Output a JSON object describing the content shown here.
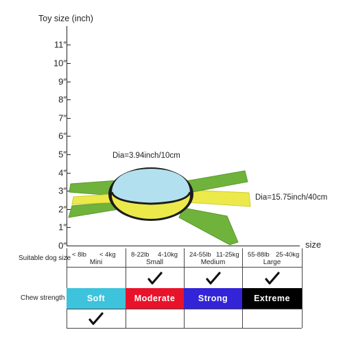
{
  "axis": {
    "y_title": "Toy size (inch)",
    "x_title": "size",
    "ticks": [
      "0″",
      "1″",
      "2″",
      "3″",
      "4″",
      "5″",
      "6″",
      "7″",
      "8″",
      "9″",
      "10″",
      "11″"
    ]
  },
  "annotations": {
    "dia_small": "Dia=3.94inch/10cm",
    "dia_large": "Dia=15.75inch/40cm"
  },
  "table": {
    "row1_label": "Suitable dog size",
    "row2_label": "Chew strength",
    "sizes": [
      {
        "lb": "< 8lb",
        "kg": "< 4kg",
        "name": "Mini",
        "checked": false
      },
      {
        "lb": "8-22lb",
        "kg": "4-10kg",
        "name": "Small",
        "checked": true
      },
      {
        "lb": "24-55lb",
        "kg": "11-25kg",
        "name": "Medium",
        "checked": true
      },
      {
        "lb": "55-88lb",
        "kg": "25-40kg",
        "name": "Large",
        "checked": true
      }
    ],
    "strengths": [
      {
        "label": "Soft",
        "bg": "#3ec3dc",
        "fg": "#ffffff",
        "checked": true
      },
      {
        "label": "Moderate",
        "bg": "#e8132a",
        "fg": "#ffffff",
        "checked": false
      },
      {
        "label": "Strong",
        "bg": "#3324d8",
        "fg": "#ffffff",
        "checked": false
      },
      {
        "label": "Extreme",
        "bg": "#000000",
        "fg": "#ffffff",
        "checked": false
      }
    ]
  },
  "colors": {
    "toy_blue": "#b3e0ee",
    "toy_yellow": "#ecea4a",
    "toy_green": "#6fb33c",
    "toy_band": "#1c1c1c"
  }
}
